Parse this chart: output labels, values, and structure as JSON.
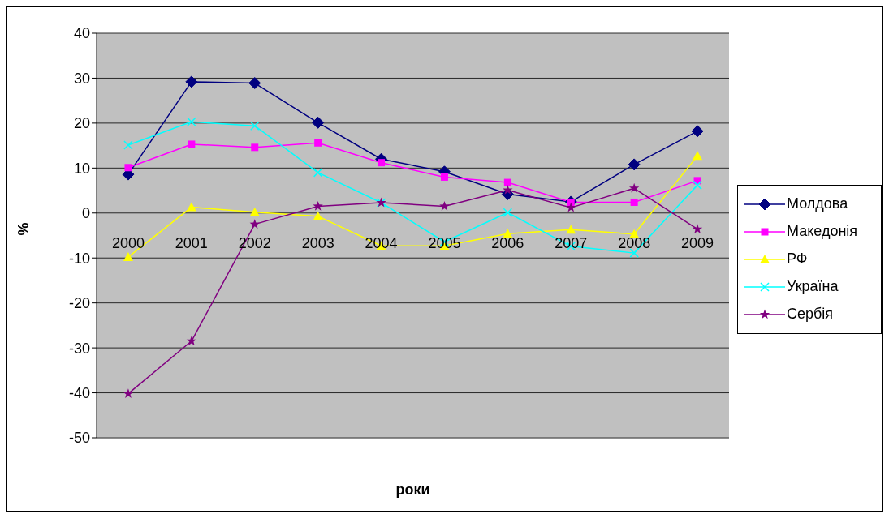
{
  "chart_data": {
    "type": "line",
    "xlabel": "роки",
    "ylabel": "%",
    "categories": [
      "2000",
      "2001",
      "2002",
      "2003",
      "2004",
      "2005",
      "2006",
      "2007",
      "2008",
      "2009"
    ],
    "series": [
      {
        "name": "Молдова",
        "color": "#000080",
        "marker": "diamond",
        "values": [
          8.6,
          29.2,
          28.9,
          20.1,
          12,
          9.2,
          4.2,
          2.5,
          10.8,
          18.2
        ]
      },
      {
        "name": "Македонія",
        "color": "#ff00ff",
        "marker": "square",
        "values": [
          10.1,
          15.3,
          14.6,
          15.6,
          11.2,
          8,
          6.8,
          2.4,
          2.4,
          7.2
        ]
      },
      {
        "name": "РФ",
        "color": "#ffff00",
        "marker": "triangle",
        "values": [
          -9.8,
          1.3,
          0.2,
          -0.7,
          -7.3,
          -7.3,
          -4.6,
          -3.7,
          -4.7,
          12.7
        ]
      },
      {
        "name": "Україна",
        "color": "#00ffff",
        "marker": "cross",
        "values": [
          15.1,
          20.3,
          19.4,
          9,
          2.3,
          -6.4,
          0.1,
          -7.4,
          -8.9,
          6.2
        ]
      },
      {
        "name": "Сербія",
        "color": "#800080",
        "marker": "star",
        "values": [
          -40.2,
          -28.5,
          -2.5,
          1.5,
          2.3,
          1.5,
          5.1,
          1.2,
          5.5,
          -3.6
        ]
      }
    ],
    "ylim": [
      -50,
      40
    ],
    "yticks": [
      -50,
      -40,
      -30,
      -20,
      -10,
      0,
      10,
      20,
      30,
      40
    ],
    "grid": "y",
    "legend": "right"
  }
}
